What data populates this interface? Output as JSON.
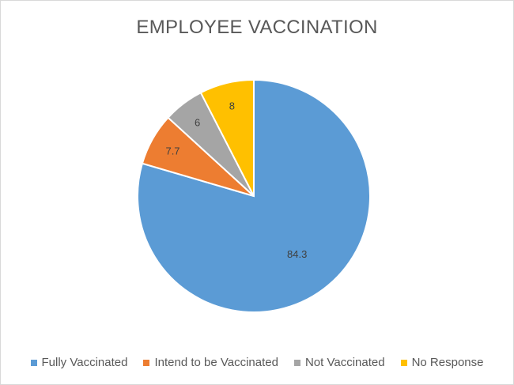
{
  "chart_data": {
    "type": "pie",
    "title": "EMPLOYEE VACCINATION",
    "categories": [
      "Fully Vaccinated",
      "Intend to be Vaccinated",
      "Not Vaccinated",
      "No Response"
    ],
    "values": [
      84.3,
      7.7,
      6,
      8
    ],
    "value_labels": [
      "84.3",
      "7.7",
      "6",
      "8"
    ],
    "colors": [
      "#5b9bd5",
      "#ed7d31",
      "#a5a5a5",
      "#ffc000"
    ],
    "start_angle": "top, clockwise",
    "legend_position": "bottom"
  }
}
